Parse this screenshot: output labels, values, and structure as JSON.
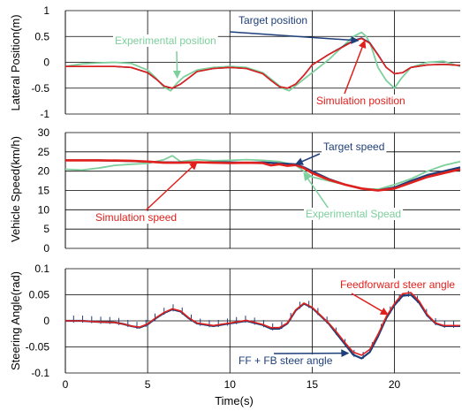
{
  "figure": {
    "xlabel": "Time(s)"
  },
  "chart_data": [
    {
      "type": "line",
      "ylabel": "Lateral Position(m)",
      "xlim": [
        0,
        24
      ],
      "ylim": [
        -1,
        1
      ],
      "yticks": [
        "1",
        "0.5",
        "0",
        "-0.5",
        "-1"
      ],
      "ytick_values": [
        1,
        0.5,
        0,
        -0.5,
        -1
      ],
      "xticks": [
        "0",
        "5",
        "10",
        "15",
        "20"
      ],
      "xtick_values": [
        0,
        5,
        10,
        15,
        20
      ],
      "grid": true,
      "series": [
        {
          "name": "Experimental position",
          "color": "#7dcf9c",
          "x": [
            0,
            1,
            2,
            3,
            4,
            5,
            5.5,
            6,
            6.4,
            6.8,
            7.2,
            8,
            9,
            10,
            11,
            12,
            12.6,
            13.2,
            13.6,
            14,
            15,
            16,
            17,
            17.5,
            18,
            18.3,
            18.6,
            19,
            19.5,
            20,
            20.4,
            21,
            22,
            23,
            24
          ],
          "y": [
            -0.08,
            -0.03,
            -0.01,
            0,
            -0.02,
            -0.15,
            -0.3,
            -0.48,
            -0.55,
            -0.4,
            -0.28,
            -0.15,
            -0.1,
            -0.08,
            -0.1,
            -0.2,
            -0.35,
            -0.5,
            -0.55,
            -0.45,
            -0.2,
            0.05,
            0.35,
            0.5,
            0.58,
            0.5,
            0.3,
            -0.1,
            -0.35,
            -0.5,
            -0.32,
            -0.1,
            0,
            0.02,
            -0.08
          ]
        },
        {
          "name": "Target position",
          "color": "#1f3f7a",
          "x": [
            0,
            1,
            2,
            3,
            4,
            5,
            5.5,
            6,
            6.5,
            7,
            7.5,
            8,
            9,
            10,
            11,
            12,
            12.5,
            13,
            13.5,
            14,
            14.5,
            15,
            16,
            17,
            17.5,
            18,
            18.5,
            19,
            19.5,
            20,
            20.5,
            21,
            22,
            23,
            24
          ],
          "y": [
            -0.08,
            -0.08,
            -0.08,
            -0.08,
            -0.1,
            -0.2,
            -0.32,
            -0.46,
            -0.5,
            -0.42,
            -0.3,
            -0.18,
            -0.12,
            -0.1,
            -0.12,
            -0.22,
            -0.35,
            -0.47,
            -0.5,
            -0.42,
            -0.25,
            -0.05,
            0.15,
            0.33,
            0.42,
            0.47,
            0.38,
            0.15,
            -0.1,
            -0.22,
            -0.2,
            -0.1,
            -0.05,
            -0.04,
            -0.06
          ]
        },
        {
          "name": "Simulation position",
          "color": "#e0201c",
          "x": [
            0,
            1,
            2,
            3,
            4,
            5,
            5.5,
            6,
            6.5,
            7,
            7.5,
            8,
            9,
            10,
            11,
            12,
            12.5,
            13,
            13.5,
            14,
            14.5,
            15,
            16,
            17,
            17.5,
            18,
            18.5,
            19,
            19.5,
            20,
            20.5,
            21,
            22,
            23,
            24
          ],
          "y": [
            -0.08,
            -0.08,
            -0.08,
            -0.08,
            -0.1,
            -0.2,
            -0.32,
            -0.46,
            -0.5,
            -0.42,
            -0.3,
            -0.18,
            -0.12,
            -0.1,
            -0.12,
            -0.22,
            -0.35,
            -0.47,
            -0.5,
            -0.42,
            -0.25,
            -0.05,
            0.15,
            0.32,
            0.41,
            0.46,
            0.37,
            0.14,
            -0.1,
            -0.22,
            -0.2,
            -0.1,
            -0.05,
            -0.04,
            -0.06
          ]
        }
      ],
      "annotations": [
        {
          "text": "Target position",
          "color": "#1f3f7a",
          "series": "Target position",
          "x": 17.8,
          "y": 0.42
        },
        {
          "text": "Experimental position",
          "color": "#7dcf9c",
          "series": "Experimental position",
          "x": 6.8,
          "y": -0.3
        },
        {
          "text": "Simulation position",
          "color": "#e0201c",
          "series": "Simulation position",
          "x": 18.2,
          "y": 0.42
        }
      ]
    },
    {
      "type": "line",
      "ylabel": "Vehicle Speed(km/h)",
      "xlim": [
        0,
        24
      ],
      "ylim": [
        0,
        30
      ],
      "yticks": [
        "30",
        "25",
        "20",
        "15",
        "10",
        "5",
        "0"
      ],
      "ytick_values": [
        30,
        25,
        20,
        15,
        10,
        5,
        0
      ],
      "xticks": [
        "0",
        "5",
        "10",
        "15",
        "20"
      ],
      "xtick_values": [
        0,
        5,
        10,
        15,
        20
      ],
      "grid": true,
      "series": [
        {
          "name": "Experimental Spead",
          "color": "#7dcf9c",
          "x": [
            0,
            1,
            2,
            3,
            4,
            5,
            6,
            6.5,
            7,
            8,
            9,
            10,
            11,
            12,
            13,
            14,
            14.5,
            15,
            16,
            17,
            18,
            19,
            20,
            21,
            22,
            23,
            24
          ],
          "y": [
            20.5,
            20.3,
            20.8,
            21.5,
            21.8,
            22,
            23,
            24,
            22.5,
            23,
            22.7,
            22.8,
            23,
            22.8,
            22.5,
            21.5,
            20,
            18.5,
            17.5,
            16.5,
            15.5,
            15.3,
            16.5,
            18,
            20,
            21.5,
            22.5
          ]
        },
        {
          "name": "Target speed",
          "color": "#1f3f7a",
          "x": [
            0,
            2,
            4,
            6,
            8,
            10,
            11,
            12,
            13,
            14,
            14.5,
            15,
            16,
            17,
            18,
            19,
            20,
            21,
            22,
            23,
            24
          ],
          "y": [
            22.8,
            22.8,
            22.6,
            22.3,
            22.3,
            22.3,
            22.2,
            22.3,
            22,
            21.8,
            21,
            20,
            18,
            16.5,
            15.5,
            15,
            15.8,
            17.5,
            19,
            20,
            21
          ]
        },
        {
          "name": "Simulation speed",
          "color": "#e0201c",
          "x": [
            0,
            2,
            4,
            5,
            6,
            7,
            8,
            9,
            10,
            11,
            12,
            12.5,
            13,
            13.5,
            14,
            14.5,
            15,
            16,
            17,
            18,
            19,
            20,
            21,
            22,
            23,
            24
          ],
          "y": [
            22.8,
            22.8,
            22.7,
            22.5,
            22.2,
            22.2,
            22.3,
            22.2,
            22.1,
            22.2,
            22.1,
            21.5,
            21.8,
            21.4,
            21.6,
            20.8,
            19.5,
            17.8,
            16.5,
            15.5,
            15,
            15.5,
            17,
            18.5,
            19.5,
            20.5
          ]
        }
      ],
      "annotations": [
        {
          "text": "Target speed",
          "color": "#1f3f7a",
          "series": "Target speed",
          "x": 14,
          "y": 21.8
        },
        {
          "text": "Simulation speed",
          "color": "#e0201c",
          "series": "Simulation speed",
          "x": 8,
          "y": 22.3
        },
        {
          "text": "Experimental Spead",
          "color": "#7dcf9c",
          "series": "Experimental Spead",
          "x": 14.5,
          "y": 19.5
        }
      ]
    },
    {
      "type": "line",
      "ylabel": "Steering Angle(rad)",
      "xlim": [
        0,
        24
      ],
      "ylim": [
        -0.1,
        0.1
      ],
      "yticks": [
        "0.1",
        "0.05",
        "0",
        "-0.05",
        "-0.1"
      ],
      "ytick_values": [
        0.1,
        0.05,
        0,
        -0.05,
        -0.1
      ],
      "xticks": [
        "0",
        "5",
        "10",
        "15",
        "20"
      ],
      "xtick_values": [
        0,
        5,
        10,
        15,
        20
      ],
      "grid": true,
      "series": [
        {
          "name": "FF + FB steer angle",
          "color": "#1f3f7a",
          "x": [
            0,
            1,
            2,
            3,
            3.5,
            4,
            4.5,
            5,
            5.5,
            6,
            6.5,
            7,
            7.5,
            8,
            9,
            10,
            11,
            12,
            12.5,
            13,
            13.5,
            14,
            14.5,
            15,
            15.5,
            16,
            16.5,
            17,
            17.5,
            18,
            18.5,
            19,
            19.5,
            20,
            20.5,
            21,
            21.5,
            22,
            22.5,
            23,
            24
          ],
          "y": [
            0,
            0,
            -0.002,
            -0.003,
            -0.006,
            -0.01,
            -0.013,
            -0.007,
            0.005,
            0.015,
            0.022,
            0.018,
            0.005,
            -0.005,
            -0.01,
            -0.005,
            0,
            -0.008,
            -0.015,
            -0.015,
            -0.005,
            0.02,
            0.033,
            0.025,
            0.01,
            -0.005,
            -0.025,
            -0.045,
            -0.065,
            -0.072,
            -0.06,
            -0.03,
            0.005,
            0.03,
            0.048,
            0.05,
            0.035,
            0.01,
            -0.005,
            -0.01,
            -0.01
          ]
        },
        {
          "name": "Feedforward steer angle",
          "color": "#e0201c",
          "x": [
            0,
            1,
            2,
            3,
            3.5,
            4,
            4.5,
            5,
            5.5,
            6,
            6.5,
            7,
            7.5,
            8,
            9,
            10,
            11,
            12,
            12.5,
            13,
            13.5,
            14,
            14.5,
            15,
            15.5,
            16,
            16.5,
            17,
            17.5,
            18,
            18.5,
            19,
            19.5,
            20,
            20.5,
            21,
            21.5,
            22,
            22.5,
            23,
            24
          ],
          "y": [
            0,
            0,
            -0.002,
            -0.003,
            -0.006,
            -0.01,
            -0.012,
            -0.006,
            0.006,
            0.016,
            0.023,
            0.019,
            0.006,
            -0.004,
            -0.009,
            -0.004,
            0.001,
            -0.007,
            -0.013,
            -0.013,
            -0.004,
            0.021,
            0.034,
            0.026,
            0.011,
            -0.004,
            -0.022,
            -0.042,
            -0.06,
            -0.066,
            -0.055,
            -0.026,
            0.008,
            0.033,
            0.052,
            0.054,
            0.038,
            0.012,
            -0.004,
            -0.009,
            -0.009
          ]
        }
      ],
      "ticks_noise": "short vertical blue hash marks along FF + FB trace",
      "annotations": [
        {
          "text": "Feedforward steer angle",
          "color": "#e0201c",
          "series": "Feedforward steer angle",
          "x": 19.6,
          "y": 0.012
        },
        {
          "text": "FF + FB steer angle",
          "color": "#1f3f7a",
          "series": "FF + FB steer angle",
          "x": 17.2,
          "y": -0.062
        }
      ]
    }
  ]
}
